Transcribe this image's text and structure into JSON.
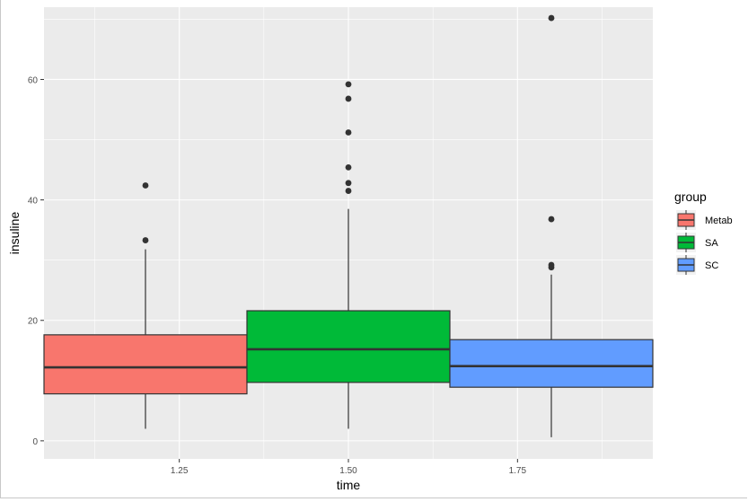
{
  "chart_data": {
    "type": "boxplot",
    "xlabel": "time",
    "ylabel": "insuline",
    "xlim": [
      1.05,
      1.95
    ],
    "ylim": [
      -3,
      72
    ],
    "x_ticks": [
      {
        "value": 1.25,
        "label": "1.25"
      },
      {
        "value": 1.5,
        "label": "1.50"
      },
      {
        "value": 1.75,
        "label": "1.75"
      }
    ],
    "y_ticks": [
      {
        "value": 0,
        "label": "0"
      },
      {
        "value": 20,
        "label": "20"
      },
      {
        "value": 40,
        "label": "40"
      },
      {
        "value": 60,
        "label": "60"
      }
    ],
    "grid": true,
    "legend": {
      "title": "group",
      "position": "right"
    },
    "series": [
      {
        "name": "Metab",
        "color": "#F8766D",
        "x": 1.2,
        "x_range": [
          1.05,
          1.35
        ],
        "whisker_low": 2,
        "q1": 7.8,
        "median": 12.2,
        "q3": 17.6,
        "whisker_high": 31.8,
        "outliers": [
          33.3,
          42.4
        ]
      },
      {
        "name": "SA",
        "color": "#00BA38",
        "x": 1.5,
        "x_range": [
          1.35,
          1.65
        ],
        "whisker_low": 2,
        "q1": 9.7,
        "median": 15.2,
        "q3": 21.6,
        "whisker_high": 38.5,
        "outliers": [
          41.5,
          42.8,
          45.4,
          51.2,
          56.8,
          59.2
        ]
      },
      {
        "name": "SC",
        "color": "#619CFF",
        "x": 1.8,
        "x_range": [
          1.65,
          1.95
        ],
        "whisker_low": 0.6,
        "q1": 8.9,
        "median": 12.4,
        "q3": 16.8,
        "whisker_high": 27.6,
        "outliers": [
          28.8,
          29.2,
          36.8,
          70.2
        ]
      }
    ]
  }
}
